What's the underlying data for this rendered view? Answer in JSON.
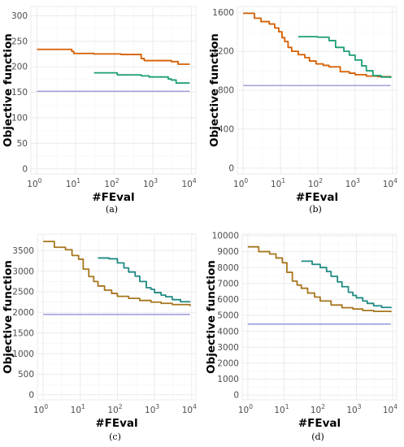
{
  "figure": {
    "ylabel": "Objective function",
    "xlabel": "#FEval",
    "colors": {
      "orange": "#d55e00",
      "teal": "#1b9e77",
      "olive": "#a6761d",
      "tealdark": "#1f8a82",
      "lavender": "#8f8fd9",
      "grid": "#ebebeb",
      "panel": "#ffffff"
    }
  },
  "chart_data": [
    {
      "type": "line",
      "caption": "(a)",
      "xlabel": "#FEval",
      "ylabel": "Objective function",
      "xscale": "log10",
      "xlim": [
        0.7,
        13000
      ],
      "ylim": [
        -10,
        318
      ],
      "xticks": [
        1,
        10,
        100,
        1000,
        10000
      ],
      "xtick_labels": [
        "10^0",
        "10^1",
        "10^2",
        "10^3",
        "10^4"
      ],
      "yticks": [
        0,
        50,
        100,
        150,
        200,
        250,
        300
      ],
      "ytick_labels": [
        "0",
        "50",
        "100",
        "150",
        "200",
        "250",
        "300"
      ],
      "grid": true,
      "series": [
        {
          "color": "orange",
          "x": [
            1,
            7,
            8,
            9,
            12,
            30,
            60,
            100,
            150,
            300,
            500,
            600,
            1000,
            3000,
            4000,
            4500,
            5000,
            9000
          ],
          "y": [
            234,
            234,
            230,
            226,
            226,
            225,
            225,
            225,
            224,
            224,
            216,
            212,
            212,
            210,
            210,
            205,
            205,
            205
          ]
        },
        {
          "color": "teal",
          "x": [
            30,
            80,
            120,
            300,
            500,
            800,
            1500,
            2500,
            3000,
            4000,
            9000
          ],
          "y": [
            188,
            188,
            184,
            184,
            182,
            180,
            180,
            176,
            174,
            168,
            168
          ]
        },
        {
          "color": "lavender",
          "x": [
            1,
            9000
          ],
          "y": [
            152,
            152
          ]
        }
      ]
    },
    {
      "type": "line",
      "caption": "(b)",
      "xlabel": "#FEval",
      "ylabel": "Objective function",
      "xscale": "log10",
      "xlim": [
        0.7,
        13000
      ],
      "ylim": [
        -60,
        1660
      ],
      "xticks": [
        1,
        10,
        100,
        1000,
        10000
      ],
      "xtick_labels": [
        "10^0",
        "10^1",
        "10^2",
        "10^3",
        "10^4"
      ],
      "yticks": [
        0,
        400,
        800,
        1200,
        1600
      ],
      "ytick_labels": [
        "0",
        "400",
        "800",
        "1200",
        "1600"
      ],
      "grid": true,
      "series": [
        {
          "color": "orange",
          "x": [
            1,
            2,
            3,
            5,
            7,
            9,
            11,
            13,
            16,
            20,
            30,
            45,
            60,
            90,
            140,
            200,
            400,
            700,
            1000,
            2000,
            4000,
            9000
          ],
          "y": [
            1590,
            1540,
            1505,
            1480,
            1440,
            1400,
            1340,
            1300,
            1240,
            1200,
            1165,
            1135,
            1100,
            1070,
            1055,
            1040,
            990,
            975,
            960,
            945,
            940,
            935
          ]
        },
        {
          "color": "teal",
          "x": [
            30,
            60,
            100,
            200,
            300,
            500,
            700,
            1000,
            1500,
            2000,
            3000,
            5000,
            9000
          ],
          "y": [
            1350,
            1350,
            1345,
            1310,
            1240,
            1200,
            1160,
            1110,
            1050,
            1000,
            950,
            935,
            925
          ]
        },
        {
          "color": "lavender",
          "x": [
            1,
            9000
          ],
          "y": [
            848,
            848
          ]
        }
      ]
    },
    {
      "type": "line",
      "caption": "(c)",
      "xlabel": "#FEval",
      "ylabel": "Objective function",
      "xscale": "log10",
      "xlim": [
        0.7,
        13000
      ],
      "ylim": [
        -120,
        3900
      ],
      "xticks": [
        1,
        10,
        100,
        1000,
        10000
      ],
      "xtick_labels": [
        "10^0",
        "10^1",
        "10^2",
        "10^3",
        "10^4"
      ],
      "yticks": [
        0,
        500,
        1000,
        1500,
        2000,
        2500,
        3000,
        3500
      ],
      "ytick_labels": [
        "0",
        "500",
        "1000",
        "1500",
        "2000",
        "2500",
        "3000",
        "3500"
      ],
      "grid": true,
      "series": [
        {
          "color": "olive",
          "x": [
            1,
            2,
            4,
            6,
            9,
            12,
            17,
            23,
            30,
            45,
            70,
            100,
            200,
            400,
            800,
            1500,
            3000,
            9000
          ],
          "y": [
            3720,
            3580,
            3520,
            3380,
            3290,
            3050,
            2870,
            2750,
            2640,
            2540,
            2460,
            2390,
            2340,
            2290,
            2250,
            2220,
            2190,
            2150
          ]
        },
        {
          "color": "tealdark",
          "x": [
            30,
            60,
            100,
            150,
            200,
            300,
            400,
            600,
            800,
            1000,
            1500,
            2000,
            3000,
            5000,
            9000
          ],
          "y": [
            3320,
            3300,
            3200,
            3080,
            2980,
            2880,
            2750,
            2600,
            2560,
            2480,
            2420,
            2380,
            2310,
            2260,
            2250
          ]
        },
        {
          "color": "lavender",
          "x": [
            1,
            9000
          ],
          "y": [
            1950,
            1950
          ]
        }
      ]
    },
    {
      "type": "line",
      "caption": "(d)",
      "xlabel": "#FEval",
      "ylabel": "Objective function",
      "xscale": "log10",
      "xlim": [
        0.7,
        13000
      ],
      "ylim": [
        -300,
        10100
      ],
      "xticks": [
        1,
        10,
        100,
        1000,
        10000
      ],
      "xtick_labels": [
        "10^0",
        "10^1",
        "10^2",
        "10^3",
        "10^4"
      ],
      "yticks": [
        0,
        1000,
        2000,
        3000,
        4000,
        5000,
        6000,
        7000,
        8000,
        9000,
        10000
      ],
      "ytick_labels": [
        "0",
        "1000",
        "2000",
        "3000",
        "4000",
        "5000",
        "6000",
        "7000",
        "8000",
        "9000",
        "10000"
      ],
      "grid": true,
      "series": [
        {
          "color": "olive",
          "x": [
            1,
            2,
            4,
            6,
            9,
            12,
            17,
            23,
            30,
            45,
            70,
            100,
            200,
            400,
            800,
            1500,
            3000,
            9000
          ],
          "y": [
            9300,
            9000,
            8850,
            8600,
            8300,
            7700,
            7150,
            6900,
            6700,
            6400,
            6150,
            5900,
            5650,
            5480,
            5400,
            5300,
            5250,
            5200
          ]
        },
        {
          "color": "tealdark",
          "x": [
            30,
            60,
            100,
            150,
            200,
            300,
            400,
            600,
            800,
            1000,
            1500,
            2000,
            3000,
            5000,
            9000
          ],
          "y": [
            8400,
            8200,
            8000,
            7750,
            7450,
            7100,
            6800,
            6450,
            6250,
            6100,
            5900,
            5750,
            5600,
            5500,
            5450
          ]
        },
        {
          "color": "lavender",
          "x": [
            1,
            9000
          ],
          "y": [
            4450,
            4450
          ]
        }
      ]
    }
  ]
}
